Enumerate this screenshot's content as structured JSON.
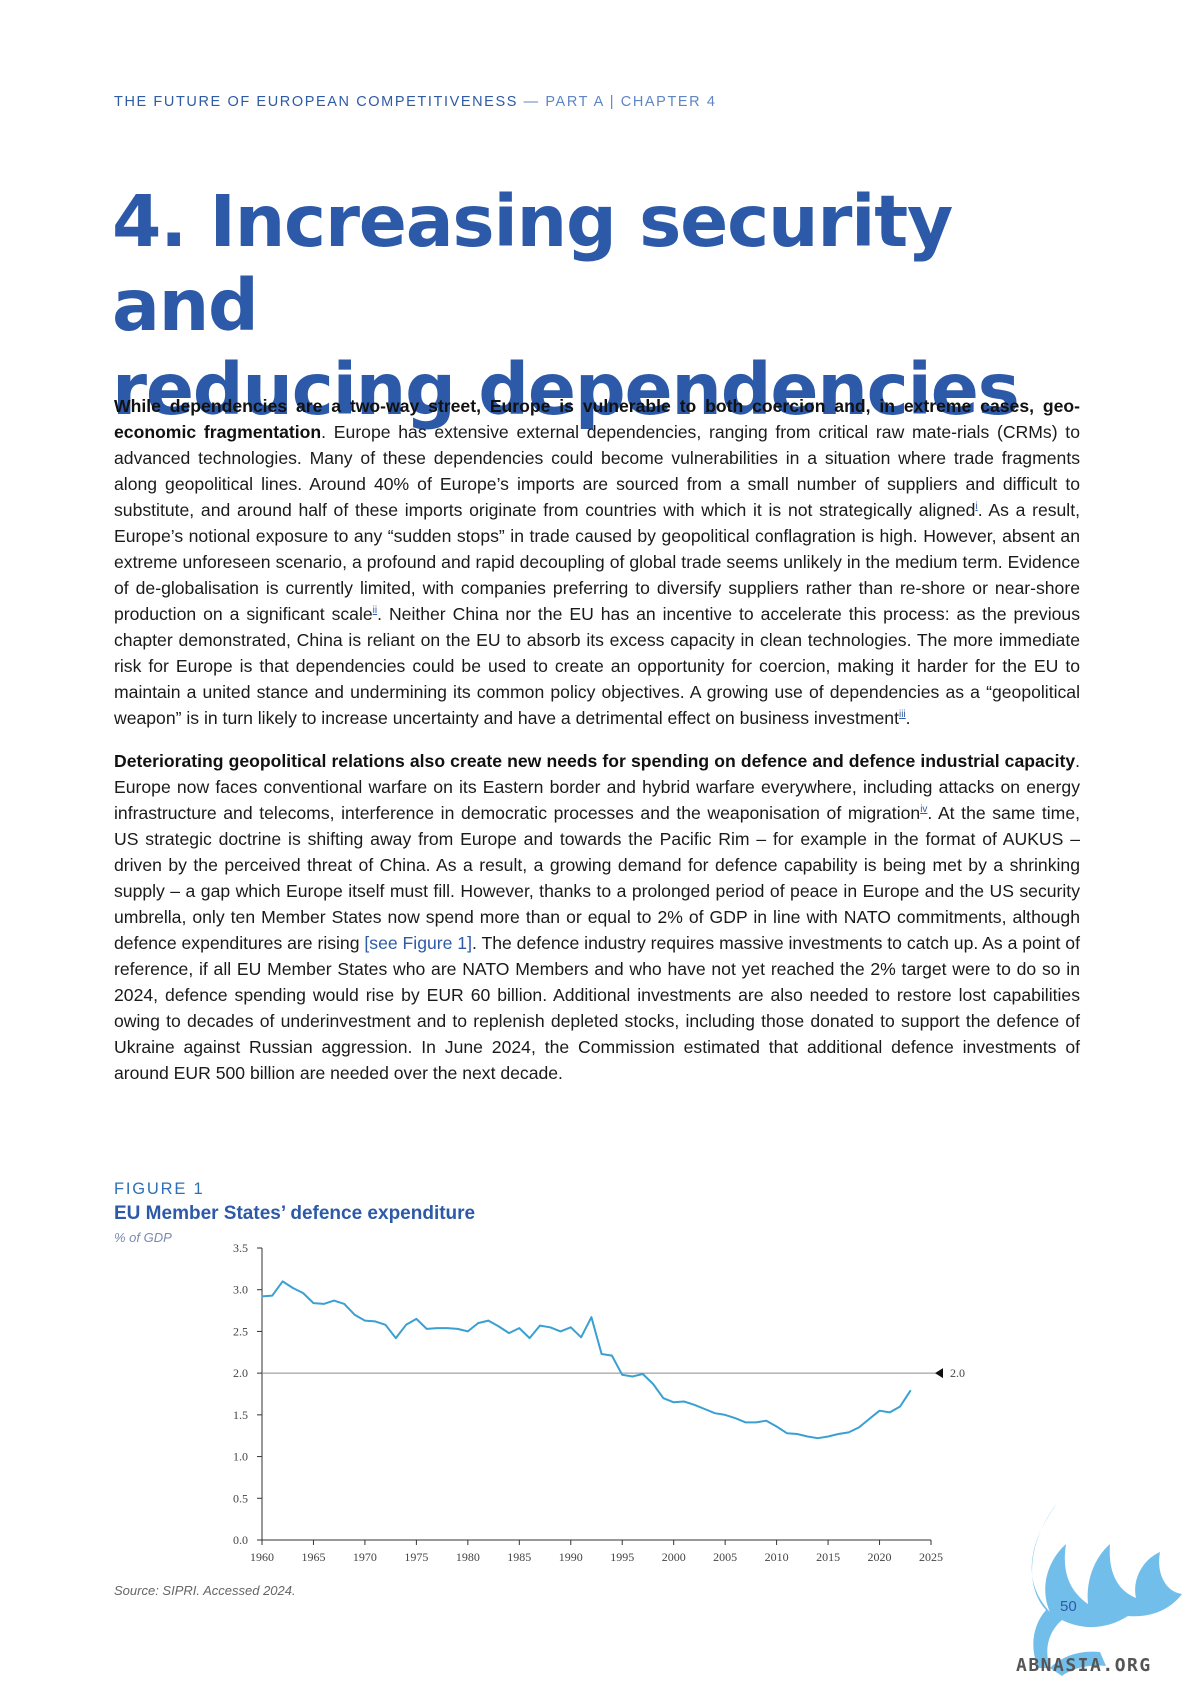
{
  "header": {
    "series_title": "THE FUTURE OF EUROPEAN COMPETITIVENESS",
    "separator": " — ",
    "part": "PART A | CHAPTER 4"
  },
  "chapter": {
    "title_line1": "4. Increasing security and",
    "title_line2": "reducing dependencies"
  },
  "paragraphs": [
    {
      "bold": "While dependencies are a two-way street, Europe is vulnerable to both coercion and, in extreme cases, geo-economic fragmentation",
      "t1": ". Europe has extensive external dependencies, ranging from critical raw mate-rials (CRMs) to advanced technologies. Many of these dependencies could become vulnerabilities in a situation where trade fragments along geopolitical lines. Around 40% of Europe’s imports are sourced from a small number of suppliers and difficult to substitute, and around half of these imports originate from countries with which it is not strategically aligned",
      "fn1": "i",
      "t2": ". As a result, Europe’s notional exposure to any “sudden stops” in trade caused by geopolitical conflagration is high. However, absent an extreme unforeseen scenario, a profound and rapid decoupling of global trade seems unlikely in the medium term. Evidence of de-globalisation is currently limited, with companies preferring to diversify suppliers rather than re-shore or near-shore production on a significant scale",
      "fn2": "ii",
      "t3": ". Neither China nor the EU has an incentive to accelerate this process: as the previous chapter demonstrated, China is reliant on the EU to absorb its excess capacity in clean technologies. The more immediate risk for Europe is that dependencies could be used to create an opportunity for coercion, making it harder for the EU to maintain a united stance and undermining its common policy objectives. A growing use of dependencies as a “geopolitical weapon” is in turn likely to increase uncertainty and have a detrimental effect on business investment",
      "fn3": "iii",
      "t4": "."
    },
    {
      "bold": "Deteriorating geopolitical relations also create new needs for spending on defence and defence industrial capacity",
      "t1": ". Europe now faces conventional warfare on its Eastern border and hybrid warfare everywhere, including attacks on energy infrastructure and telecoms, interference in democratic processes and the weaponisation of migration",
      "fn1": "iv",
      "t2": ". At the same time, US strategic doctrine is shifting away from Europe and towards the Pacific Rim – for example in the format of AUKUS – driven by the perceived threat of China. As a result, a growing demand for defence capability is being met by a shrinking supply – a gap which Europe itself must fill. However, thanks to a prolonged period of peace in Europe and the US security umbrella, only ten Member States now spend more than or equal to 2% of GDP in line with NATO commitments, although defence expenditures are rising ",
      "link": "[see Figure 1]",
      "t3": ". The defence industry requires massive investments to catch up. As a point of reference, if all EU Member States who are NATO Members and who have not yet reached the 2% target were to do so in 2024, defence spending would rise by EUR 60 billion. Additional investments are also needed to restore lost capabilities owing to decades of underinvestment and to replenish depleted stocks, including those donated to support the defence of Ukraine against Russian aggression. In June 2024, the Commission estimated that additional defence investments of around EUR 500 billion are needed over the next decade."
    }
  ],
  "figure": {
    "label": "FIGURE 1",
    "title": "EU Member States’ defence expenditure",
    "unit": "% of GDP",
    "source": "Source: SIPRI. Accessed 2024."
  },
  "chart_data": {
    "type": "line",
    "title": "EU Member States’ defence expenditure",
    "ylabel": "% of GDP",
    "xlabel": "",
    "xlim": [
      1960,
      2025
    ],
    "ylim": [
      0.0,
      3.5
    ],
    "x_ticks": [
      "1960",
      "1965",
      "1970",
      "1975",
      "1980",
      "1985",
      "1990",
      "1995",
      "2000",
      "2005",
      "2010",
      "2015",
      "2020",
      "2025"
    ],
    "y_ticks": [
      "0.0",
      "0.5",
      "1.0",
      "1.5",
      "2.0",
      "2.5",
      "3.0",
      "3.5"
    ],
    "grid": false,
    "color": "#3aa0d2",
    "reference_line": {
      "y": 2.0,
      "label": "2.0",
      "color": "#8a8a8a"
    },
    "x": [
      1960,
      1961,
      1962,
      1963,
      1964,
      1965,
      1966,
      1967,
      1968,
      1969,
      1970,
      1971,
      1972,
      1973,
      1974,
      1975,
      1976,
      1977,
      1978,
      1979,
      1980,
      1981,
      1982,
      1983,
      1984,
      1985,
      1986,
      1987,
      1988,
      1989,
      1990,
      1991,
      1992,
      1993,
      1994,
      1995,
      1996,
      1997,
      1998,
      1999,
      2000,
      2001,
      2002,
      2003,
      2004,
      2005,
      2006,
      2007,
      2008,
      2009,
      2010,
      2011,
      2012,
      2013,
      2014,
      2015,
      2016,
      2017,
      2018,
      2019,
      2020,
      2021,
      2022,
      2023
    ],
    "y": [
      2.92,
      2.93,
      3.1,
      3.02,
      2.96,
      2.84,
      2.83,
      2.87,
      2.83,
      2.7,
      2.63,
      2.62,
      2.58,
      2.42,
      2.58,
      2.65,
      2.53,
      2.54,
      2.54,
      2.53,
      2.5,
      2.6,
      2.63,
      2.56,
      2.48,
      2.54,
      2.42,
      2.57,
      2.55,
      2.5,
      2.55,
      2.43,
      2.67,
      2.23,
      2.21,
      1.98,
      1.96,
      1.99,
      1.87,
      1.7,
      1.65,
      1.66,
      1.62,
      1.57,
      1.52,
      1.5,
      1.46,
      1.41,
      1.41,
      1.43,
      1.36,
      1.28,
      1.27,
      1.24,
      1.22,
      1.24,
      1.27,
      1.29,
      1.35,
      1.45,
      1.55,
      1.53,
      1.6,
      1.79
    ]
  },
  "page_number": "50",
  "watermark": {
    "text": "ABNASIA.ORG",
    "color": "#58b3e8"
  }
}
